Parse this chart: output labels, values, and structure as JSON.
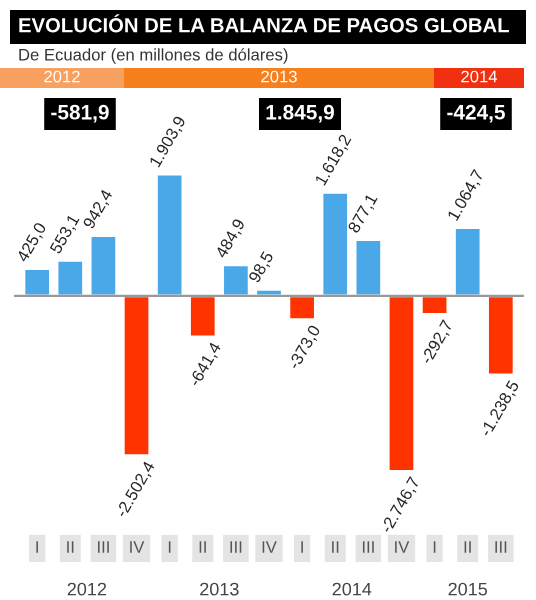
{
  "chart_data": {
    "type": "bar",
    "title": "EVOLUCIÓN DE LA BALANZA DE PAGOS GLOBAL",
    "subtitle": "De Ecuador (en millones de dólares)",
    "categories": [
      "I",
      "II",
      "III",
      "IV",
      "I",
      "II",
      "III",
      "IV",
      "I",
      "II",
      "III",
      "IV",
      "I",
      "II",
      "III"
    ],
    "values": [
      425.0,
      553.1,
      942.4,
      -2502.4,
      1903.9,
      -641.4,
      484.9,
      98.5,
      -373.0,
      1618.2,
      877.1,
      -2746.7,
      -292.7,
      1064.7,
      -1238.5
    ],
    "colors": [
      "#4aa8e8",
      "#4aa8e8",
      "#4aa8e8",
      "#ff3300",
      "#4aa8e8",
      "#ff3300",
      "#4aa8e8",
      "#4aa8e8",
      "#ff3300",
      "#4aa8e8",
      "#4aa8e8",
      "#ff3300",
      "#ff3300",
      "#4aa8e8",
      "#ff3300"
    ],
    "value_labels": [
      "425,0",
      "553,1",
      "942,4",
      "-2.502,4",
      "1.903,9",
      "-641,4",
      "484,9",
      "98,5",
      "-373,0",
      "1.618,2",
      "877,1",
      "-2.746,7",
      "-292,7",
      "1.064,7",
      "-1.238,5"
    ],
    "annotations": [
      "2012",
      "2013",
      "2014",
      "-581,9",
      "1.845,9",
      "-424,5",
      "2012",
      "2013",
      "2014",
      "2015"
    ],
    "legend": false
  }
}
